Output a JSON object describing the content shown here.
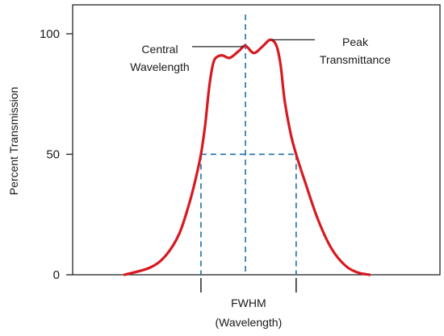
{
  "chart_data": {
    "type": "line",
    "title": "",
    "xlabel": "",
    "ylabel": "Percent Transmission",
    "ylim": [
      0,
      112
    ],
    "xlim": [
      -1.45,
      2.1
    ],
    "y_ticks": [
      {
        "value": 0,
        "label": "0"
      },
      {
        "value": 50,
        "label": "50"
      },
      {
        "value": 100,
        "label": "100"
      }
    ],
    "grid": false,
    "series": [
      {
        "color": "#d71920",
        "points": [
          [
            -0.95,
            0
          ],
          [
            -0.7,
            3
          ],
          [
            -0.55,
            8
          ],
          [
            -0.42,
            17
          ],
          [
            -0.32,
            30
          ],
          [
            -0.26,
            40
          ],
          [
            -0.21,
            50
          ],
          [
            -0.17,
            62
          ],
          [
            -0.13,
            78
          ],
          [
            -0.09,
            88
          ],
          [
            -0.05,
            90.5
          ],
          [
            0.0,
            91
          ],
          [
            0.07,
            90
          ],
          [
            0.16,
            93
          ],
          [
            0.22,
            95
          ],
          [
            0.3,
            92
          ],
          [
            0.38,
            94.5
          ],
          [
            0.46,
            97.5
          ],
          [
            0.52,
            95
          ],
          [
            0.56,
            87
          ],
          [
            0.6,
            72
          ],
          [
            0.66,
            58
          ],
          [
            0.71,
            50
          ],
          [
            0.8,
            38
          ],
          [
            0.92,
            23
          ],
          [
            1.05,
            11
          ],
          [
            1.18,
            4
          ],
          [
            1.3,
            1
          ],
          [
            1.42,
            0
          ]
        ]
      }
    ],
    "guides": {
      "color": "#1f6fa8",
      "central_x": 0.22,
      "fwhm_left_x": -0.21,
      "fwhm_right_x": 0.71,
      "half_max_y": 50
    },
    "annotations": {
      "central": {
        "lines": [
          "Central",
          "Wavelength"
        ],
        "x": 0.22,
        "y": 95
      },
      "peak": {
        "lines": [
          "Peak",
          "Transmittance"
        ],
        "x": 0.46,
        "y": 97.5
      },
      "fwhm": {
        "lines": [
          "FWHM",
          "(Wavelength)"
        ]
      }
    }
  }
}
